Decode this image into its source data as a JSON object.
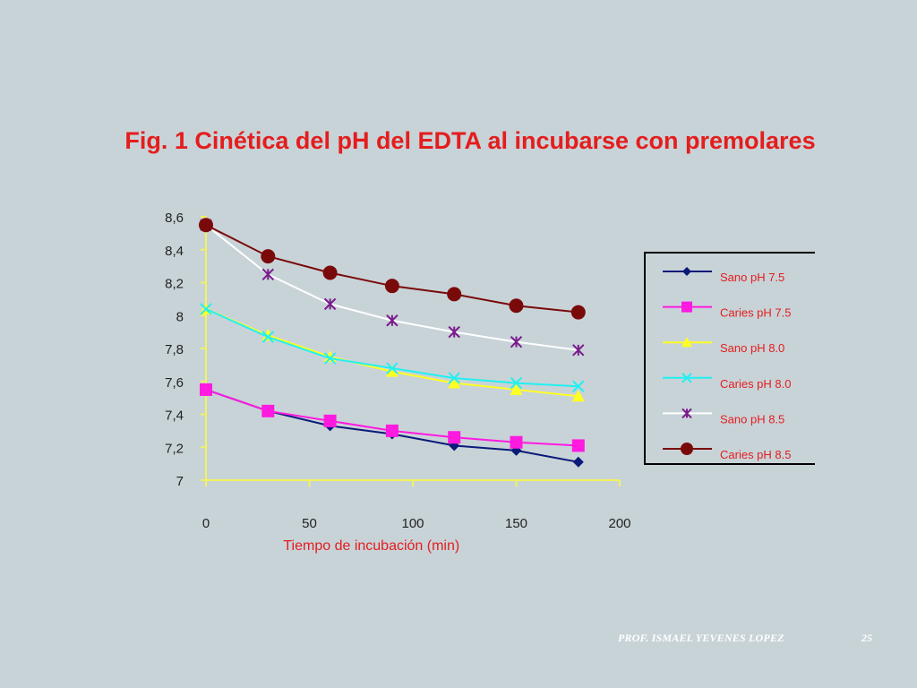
{
  "slide": {
    "title": "Fig. 1 Cinética del pH del EDTA al incubarse con premolares",
    "footer_author": "PROF. ISMAEL YEVENES LOPEZ",
    "footer_page": "25"
  },
  "chart_data": {
    "type": "line",
    "title": "",
    "xlabel": "Tiempo de incubación (min)",
    "ylabel": "",
    "xlim": [
      0,
      200
    ],
    "ylim": [
      7,
      8.6
    ],
    "x_ticks": [
      0,
      50,
      100,
      150,
      200
    ],
    "x_tick_labels": [
      "0",
      "50",
      "100",
      "150",
      "200"
    ],
    "y_ticks": [
      7,
      7.2,
      7.4,
      7.6,
      7.8,
      8,
      8.2,
      8.4,
      8.6
    ],
    "y_tick_labels": [
      "7",
      "7,2",
      "7,4",
      "7,6",
      "7,8",
      "8",
      "8,2",
      "8,4",
      "8,6"
    ],
    "grid": false,
    "legend_position": "right",
    "axis_color": "#f2f25a",
    "label_color": "#e41d1d",
    "x": [
      0,
      30,
      60,
      90,
      120,
      150,
      180
    ],
    "series": [
      {
        "name": "Sano pH 7.5",
        "color": "#0a1a78",
        "marker": "diamond",
        "values": [
          7.55,
          7.42,
          7.33,
          7.28,
          7.21,
          7.18,
          7.11
        ]
      },
      {
        "name": "Caries pH 7.5",
        "color": "#ff1ae0",
        "marker": "square",
        "values": [
          7.55,
          7.42,
          7.36,
          7.3,
          7.26,
          7.23,
          7.21
        ]
      },
      {
        "name": "Sano pH 8.0",
        "color": "#ffff22",
        "marker": "triangle",
        "values": [
          8.04,
          7.88,
          7.75,
          7.66,
          7.59,
          7.55,
          7.51
        ]
      },
      {
        "name": "Caries pH 8.0",
        "color": "#22f0f0",
        "marker": "x",
        "values": [
          8.04,
          7.87,
          7.74,
          7.68,
          7.62,
          7.59,
          7.57
        ]
      },
      {
        "name": "Sano pH 8.5",
        "color": "#ffffff",
        "marker_color": "#7a1c8c",
        "marker": "star",
        "values": [
          8.55,
          8.25,
          8.07,
          7.97,
          7.9,
          7.84,
          7.79
        ]
      },
      {
        "name": "Caries pH 8.5",
        "color": "#7a0a0a",
        "marker": "circle",
        "values": [
          8.55,
          8.36,
          8.26,
          8.18,
          8.13,
          8.06,
          8.02
        ]
      }
    ]
  }
}
